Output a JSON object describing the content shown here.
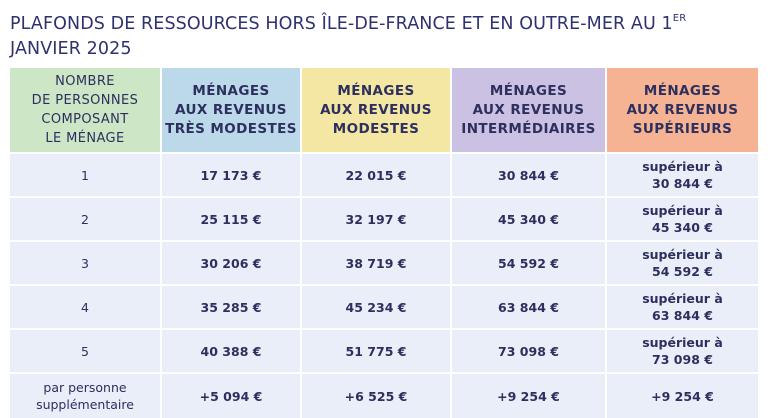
{
  "title": {
    "text": "PLAFONDS DE RESSOURCES HORS ÎLE-DE-FRANCE ET EN OUTRE-MER AU 1",
    "sup": "ER",
    "line2": "JANVIER 2025"
  },
  "table": {
    "headers": [
      [
        "NOMBRE",
        "DE PERSONNES",
        "COMPOSANT",
        "LE MÉNAGE"
      ],
      [
        "MÉNAGES",
        "AUX REVENUS",
        "TRÈS MODESTES"
      ],
      [
        "MÉNAGES",
        "AUX REVENUS",
        "MODESTES"
      ],
      [
        "MÉNAGES",
        "AUX REVENUS",
        "INTERMÉDIAIRES"
      ],
      [
        "MÉNAGES",
        "AUX REVENUS",
        "SUPÉRIEURS"
      ]
    ],
    "rows": [
      [
        [
          "1"
        ],
        [
          "17 173 €"
        ],
        [
          "22 015 €"
        ],
        [
          "30 844 €"
        ],
        [
          "supérieur à",
          "30 844 €"
        ]
      ],
      [
        [
          "2"
        ],
        [
          "25 115 €"
        ],
        [
          "32 197 €"
        ],
        [
          "45 340 €"
        ],
        [
          "supérieur à",
          "45 340 €"
        ]
      ],
      [
        [
          "3"
        ],
        [
          "30 206 €"
        ],
        [
          "38 719 €"
        ],
        [
          "54 592 €"
        ],
        [
          "supérieur à",
          "54 592 €"
        ]
      ],
      [
        [
          "4"
        ],
        [
          "35 285 €"
        ],
        [
          "45 234 €"
        ],
        [
          "63 844 €"
        ],
        [
          "supérieur à",
          "63 844 €"
        ]
      ],
      [
        [
          "5"
        ],
        [
          "40 388 €"
        ],
        [
          "51 775 €"
        ],
        [
          "73 098 €"
        ],
        [
          "supérieur à",
          "73 098 €"
        ]
      ],
      [
        [
          "par personne",
          "supplémentaire"
        ],
        [
          "+5 094 €"
        ],
        [
          "+6 525 €"
        ],
        [
          "+9 254 €"
        ],
        [
          "+9 254 €"
        ]
      ]
    ]
  }
}
